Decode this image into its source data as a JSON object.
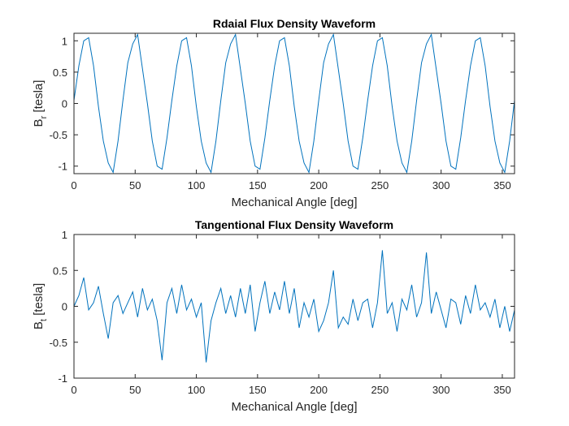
{
  "chart_data": [
    {
      "type": "line",
      "title": "Rdaial Flux Density Waveform",
      "xlabel": "Mechanical Angle [deg]",
      "ylabel": [
        "B",
        "r",
        " [tesla]"
      ],
      "color": "#0072bd",
      "xlim": [
        0,
        360
      ],
      "ylim": [
        -1.12,
        1.12
      ],
      "xticks": [
        0,
        50,
        100,
        150,
        200,
        250,
        300,
        350
      ],
      "yticks": [
        -1,
        -0.5,
        0,
        0.5,
        1
      ],
      "x": [
        0,
        4,
        8,
        12,
        16,
        20,
        24,
        28,
        32,
        36,
        40,
        44,
        48,
        52,
        56,
        60,
        64,
        68,
        72,
        76,
        80,
        84,
        88,
        92,
        96,
        100,
        104,
        108,
        112,
        116,
        120,
        124,
        128,
        132,
        136,
        140,
        144,
        148,
        152,
        156,
        160,
        164,
        168,
        172,
        176,
        180,
        184,
        188,
        192,
        196,
        200,
        204,
        208,
        212,
        216,
        220,
        224,
        228,
        232,
        236,
        240,
        244,
        248,
        252,
        256,
        260,
        264,
        268,
        272,
        276,
        280,
        284,
        288,
        292,
        296,
        300,
        304,
        308,
        312,
        316,
        320,
        324,
        328,
        332,
        336,
        340,
        344,
        348,
        352,
        356,
        360
      ],
      "values": [
        0.05,
        0.6,
        1.0,
        1.05,
        0.6,
        -0.05,
        -0.6,
        -0.95,
        -1.1,
        -0.6,
        0.05,
        0.65,
        0.95,
        1.1,
        0.55,
        0.0,
        -0.6,
        -1.0,
        -1.05,
        -0.55,
        0.05,
        0.6,
        1.0,
        1.05,
        0.6,
        -0.05,
        -0.6,
        -0.95,
        -1.1,
        -0.6,
        0.05,
        0.65,
        0.95,
        1.1,
        0.55,
        0.0,
        -0.6,
        -1.0,
        -1.05,
        -0.55,
        0.05,
        0.6,
        1.0,
        1.05,
        0.6,
        -0.05,
        -0.6,
        -0.95,
        -1.1,
        -0.6,
        0.05,
        0.65,
        0.95,
        1.1,
        0.55,
        0.0,
        -0.6,
        -1.0,
        -1.05,
        -0.55,
        0.05,
        0.6,
        1.0,
        1.05,
        0.6,
        -0.05,
        -0.6,
        -0.95,
        -1.1,
        -0.6,
        0.05,
        0.65,
        0.95,
        1.1,
        0.55,
        0.0,
        -0.6,
        -1.0,
        -1.05,
        -0.55,
        0.05,
        0.6,
        1.0,
        1.05,
        0.6,
        -0.05,
        -0.6,
        -0.95,
        -1.1,
        -0.6,
        0.05
      ]
    },
    {
      "type": "line",
      "title": "Tangentional Flux Density Waveform",
      "xlabel": "Mechanical Angle [deg]",
      "ylabel": [
        "B",
        "t",
        " [tesla]"
      ],
      "color": "#0072bd",
      "xlim": [
        0,
        360
      ],
      "ylim": [
        -1,
        1
      ],
      "xticks": [
        0,
        50,
        100,
        150,
        200,
        250,
        300,
        350
      ],
      "yticks": [
        -1,
        -0.5,
        0,
        0.5,
        1
      ],
      "x": [
        0,
        4,
        8,
        12,
        16,
        20,
        24,
        28,
        32,
        36,
        40,
        44,
        48,
        52,
        56,
        60,
        64,
        68,
        72,
        76,
        80,
        84,
        88,
        92,
        96,
        100,
        104,
        108,
        112,
        116,
        120,
        124,
        128,
        132,
        136,
        140,
        144,
        148,
        152,
        156,
        160,
        164,
        168,
        172,
        176,
        180,
        184,
        188,
        192,
        196,
        200,
        204,
        208,
        212,
        216,
        220,
        224,
        228,
        232,
        236,
        240,
        244,
        248,
        252,
        256,
        260,
        264,
        268,
        272,
        276,
        280,
        284,
        288,
        292,
        296,
        300,
        304,
        308,
        312,
        316,
        320,
        324,
        328,
        332,
        336,
        340,
        344,
        348,
        352,
        356,
        360
      ],
      "values": [
        0,
        0.15,
        0.4,
        -0.05,
        0.05,
        0.28,
        -0.1,
        -0.45,
        0.05,
        0.15,
        -0.1,
        0.05,
        0.2,
        -0.15,
        0.25,
        -0.05,
        0.1,
        -0.2,
        -0.75,
        0.05,
        0.25,
        -0.1,
        0.3,
        -0.05,
        0.1,
        -0.15,
        0.05,
        -0.78,
        -0.2,
        0.05,
        0.25,
        -0.1,
        0.15,
        -0.15,
        0.25,
        -0.1,
        0.3,
        -0.35,
        0.05,
        0.35,
        -0.1,
        0.2,
        -0.05,
        0.35,
        -0.1,
        0.25,
        -0.3,
        0.05,
        -0.15,
        0.1,
        -0.35,
        -0.2,
        0.05,
        0.5,
        -0.3,
        -0.15,
        -0.25,
        0.1,
        -0.2,
        0.05,
        0.1,
        -0.3,
        0.05,
        0.78,
        -0.1,
        0.05,
        -0.35,
        0.1,
        -0.05,
        0.3,
        -0.15,
        0.05,
        0.75,
        -0.1,
        0.2,
        -0.05,
        -0.3,
        0.1,
        0.05,
        -0.25,
        0.15,
        -0.1,
        0.3,
        -0.05,
        0.05,
        -0.15,
        0.1,
        -0.3,
        0.0,
        -0.35,
        -0.05
      ]
    }
  ]
}
